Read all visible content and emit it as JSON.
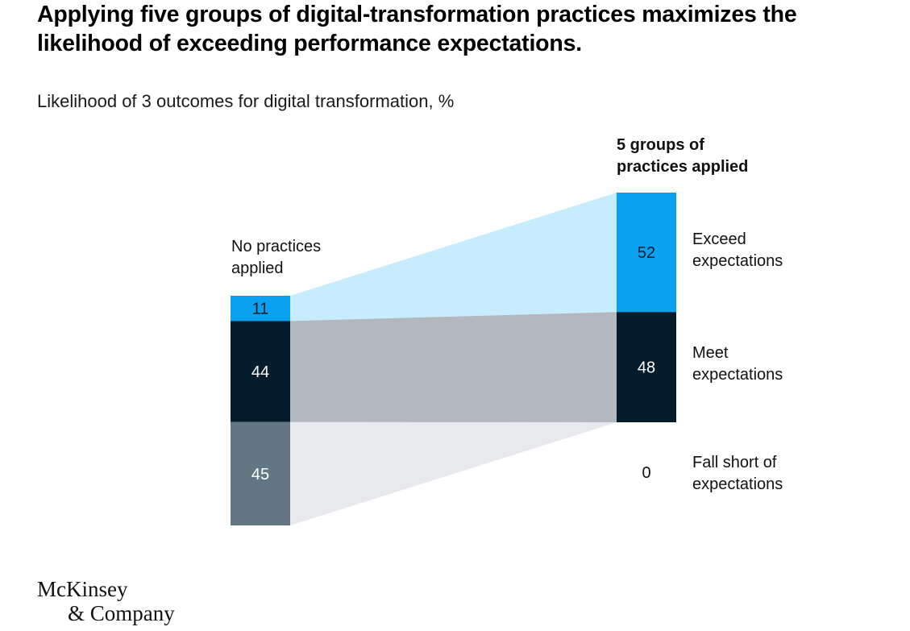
{
  "title": "Applying five groups of digital-transformation practices maximizes the likelihood of exceeding performance expectations.",
  "subtitle": "Likelihood of 3 outcomes for digital transformation, %",
  "logo": {
    "line1": "McKinsey",
    "line2": "& Company"
  },
  "colors": {
    "exceed": "#0aa2f0",
    "meet": "#051c2c",
    "fall": "#637684",
    "band_exceed": "#c6ecfd",
    "band_meet": "#b3b8be",
    "band_fall": "#e7e9ec"
  },
  "chart_data": {
    "type": "bar",
    "stacked": true,
    "unit": "%",
    "categories": [
      "No practices applied",
      "5 groups of practices applied"
    ],
    "series": [
      {
        "name": "Exceed expectations",
        "label_lines": [
          "Exceed",
          "expectations"
        ],
        "values": [
          11,
          52
        ]
      },
      {
        "name": "Meet expectations",
        "label_lines": [
          "Meet",
          "expectations"
        ],
        "values": [
          44,
          48
        ]
      },
      {
        "name": "Fall short of expectations",
        "label_lines": [
          "Fall short of",
          "expectations"
        ],
        "values": [
          45,
          0
        ]
      }
    ],
    "left_label_lines": [
      "No practices",
      "applied"
    ],
    "right_label_lines": [
      "5 groups of",
      "practices applied"
    ]
  }
}
